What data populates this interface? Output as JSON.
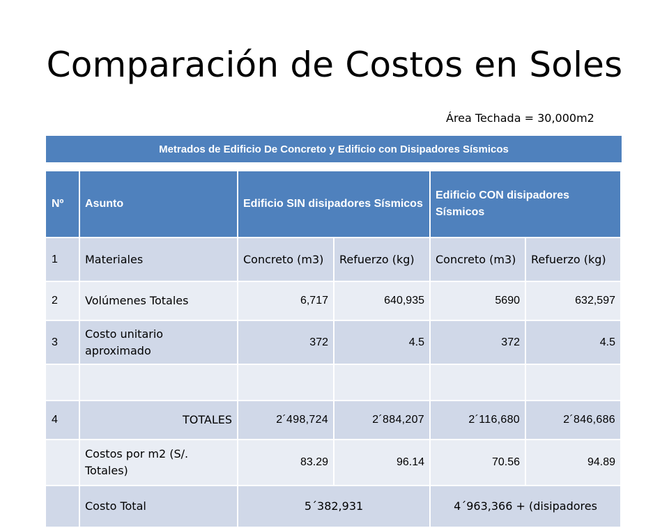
{
  "title": "Comparación de Costos en Soles",
  "area_label": "Área Techada = 30,000m2",
  "banner": "Metrados de Edificio De Concreto y Edificio con Disipadores Sísmicos",
  "header": {
    "no": "Nº",
    "asunto": "Asunto",
    "sin": "Edificio SIN disipadores Sísmicos",
    "con": "Edificio CON disipadores Sísmicos"
  },
  "rows": {
    "materiales": {
      "no": "1",
      "label": "Materiales",
      "sin_concreto": "Concreto (m3)",
      "sin_refuerzo": "Refuerzo (kg)",
      "con_concreto": "Concreto (m3)",
      "con_refuerzo": "Refuerzo (kg)"
    },
    "volumenes": {
      "no": "2",
      "label": "Volúmenes Totales",
      "sin_concreto": "6,717",
      "sin_refuerzo": "640,935",
      "con_concreto": "5690",
      "con_refuerzo": "632,597"
    },
    "costo_unitario": {
      "no": "3",
      "label": "Costo unitario aproximado",
      "sin_concreto": "372",
      "sin_refuerzo": "4.5",
      "con_concreto": "372",
      "con_refuerzo": "4.5"
    },
    "totales": {
      "no": "4",
      "label": "TOTALES",
      "sin_concreto": "2´498,724",
      "sin_refuerzo": "2´884,207",
      "con_concreto": "2´116,680",
      "con_refuerzo": "2´846,686"
    },
    "costos_m2": {
      "no": "",
      "label": "Costos por m2 (S/. Totales)",
      "sin_concreto": "83.29",
      "sin_refuerzo": "96.14",
      "con_concreto": "70.56",
      "con_refuerzo": "94.89"
    },
    "costo_total": {
      "no": "",
      "label": "Costo Total",
      "sin": "5´382,931",
      "con": "4´963,366 + (disipadores"
    }
  }
}
